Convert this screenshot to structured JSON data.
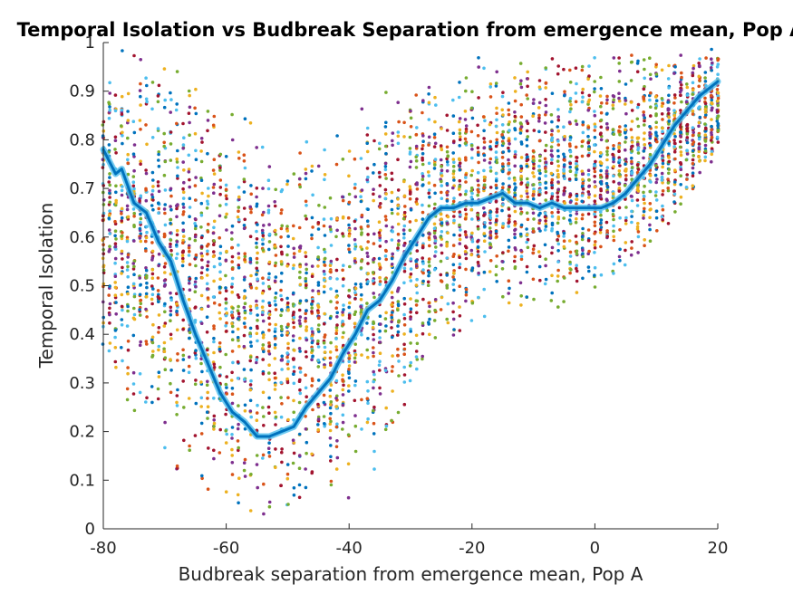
{
  "chart_data": {
    "type": "scatter",
    "title": "Temporal Isolation vs Budbreak Separation from emergence mean, Pop A",
    "xlabel": "Budbreak separation from emergence mean, Pop A",
    "ylabel": "Temporal Isolation",
    "xlim": [
      -80,
      20
    ],
    "ylim": [
      0,
      1
    ],
    "xticks": [
      -80,
      -60,
      -40,
      -20,
      0,
      20
    ],
    "yticks": [
      0,
      0.1,
      0.2,
      0.3,
      0.4,
      0.5,
      0.6,
      0.7,
      0.8,
      0.9,
      1
    ],
    "xtick_labels": [
      "-80",
      "-60",
      "-40",
      "-20",
      "0",
      "20"
    ],
    "ytick_labels": [
      "0",
      "0.1",
      "0.2",
      "0.3",
      "0.4",
      "0.5",
      "0.6",
      "0.7",
      "0.8",
      "0.9",
      "1"
    ],
    "grid": false,
    "legend": "none",
    "point_colors": [
      "#0072BD",
      "#D95319",
      "#EDB120",
      "#7E2F8E",
      "#77AC30",
      "#4DBEEE",
      "#A2142F"
    ],
    "series": [
      {
        "role": "scatter-envelope",
        "x": [
          -80,
          -75,
          -70,
          -65,
          -60,
          -55,
          -50,
          -45,
          -40,
          -35,
          -30,
          -25,
          -20,
          -15,
          -10,
          -5,
          0,
          5,
          10,
          15,
          20
        ],
        "y_low": [
          0.3,
          0.22,
          0.12,
          0.06,
          0.03,
          0.02,
          0.02,
          0.02,
          0.05,
          0.12,
          0.25,
          0.35,
          0.4,
          0.43,
          0.45,
          0.45,
          0.48,
          0.52,
          0.58,
          0.66,
          0.75
        ],
        "y_high": [
          1.0,
          1.0,
          1.0,
          0.95,
          0.9,
          0.85,
          0.8,
          0.82,
          0.85,
          0.9,
          0.93,
          0.95,
          0.97,
          0.98,
          0.98,
          0.98,
          0.98,
          0.99,
          1.0,
          1.0,
          1.0
        ]
      },
      {
        "role": "mean-line",
        "color": "#0072BD",
        "x": [
          -80,
          -78,
          -77,
          -75,
          -73,
          -71,
          -69,
          -67,
          -65,
          -63,
          -61,
          -59,
          -57,
          -55,
          -53,
          -51,
          -49,
          -47,
          -45,
          -43,
          -41,
          -39,
          -37,
          -35,
          -33,
          -31,
          -29,
          -27,
          -25,
          -23,
          -21,
          -19,
          -17,
          -15,
          -13,
          -11,
          -9,
          -7,
          -5,
          -3,
          -1,
          1,
          3,
          5,
          7,
          9,
          11,
          13,
          15,
          17,
          20
        ],
        "y": [
          0.78,
          0.73,
          0.74,
          0.67,
          0.65,
          0.59,
          0.55,
          0.47,
          0.4,
          0.34,
          0.28,
          0.24,
          0.22,
          0.19,
          0.19,
          0.2,
          0.21,
          0.25,
          0.28,
          0.31,
          0.36,
          0.4,
          0.45,
          0.47,
          0.51,
          0.56,
          0.6,
          0.64,
          0.66,
          0.66,
          0.67,
          0.67,
          0.68,
          0.69,
          0.67,
          0.67,
          0.66,
          0.67,
          0.66,
          0.66,
          0.66,
          0.66,
          0.67,
          0.69,
          0.72,
          0.75,
          0.79,
          0.83,
          0.86,
          0.89,
          0.92
        ]
      }
    ]
  }
}
